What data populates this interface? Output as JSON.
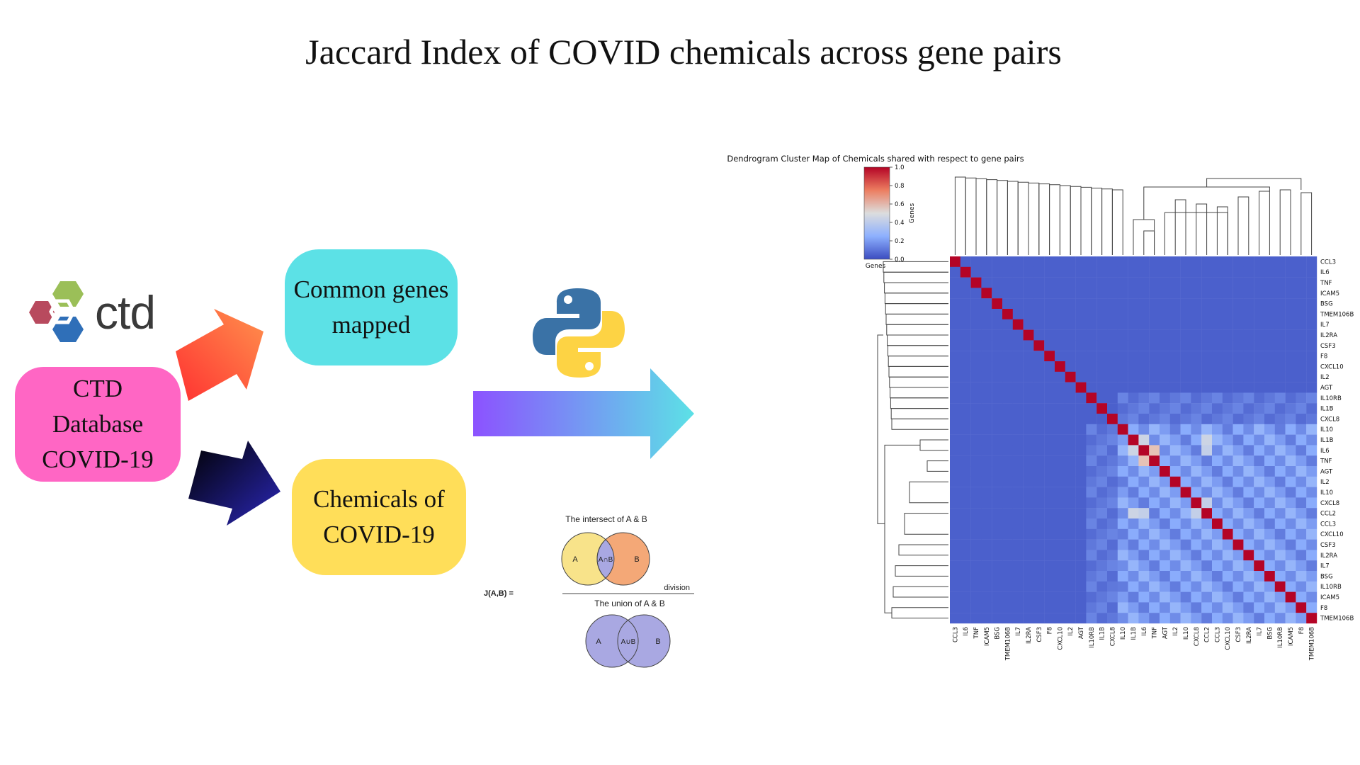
{
  "title": "Jaccard Index of COVID chemicals across gene pairs",
  "logo": {
    "text": "ctd",
    "colors": [
      "#b84a5e",
      "#9bbf58",
      "#2f6fb8"
    ]
  },
  "boxes": {
    "database": "CTD\nDatabase\nCOVID-19",
    "common_genes": "Common genes\nmapped",
    "chemicals": "Chemicals of\nCOVID-19"
  },
  "colors": {
    "pink": "#ff66c4",
    "cyan": "#5ce1e6",
    "yellow": "#ffde59"
  },
  "jaccard": {
    "lhs": "J(A,B)  =",
    "intersect_title": "The intersect of A & B",
    "union_title": "The union of A & B",
    "division": "division",
    "a": "A",
    "b": "B",
    "intersection": "A∩B",
    "union": "A∪B"
  },
  "chart_data": {
    "type": "heatmap",
    "title": "Dendrogram Cluster Map of Chemicals shared with respect to gene pairs",
    "colorbar_label": "Genes",
    "colorbar_ticks": [
      1.0,
      0.8,
      0.6,
      0.4,
      0.2,
      0.0
    ],
    "colorbar_tick_labels": [
      "1.0",
      "0.8",
      "0.6",
      "0.4",
      "0.2",
      "0.0"
    ],
    "colormap": "coolwarm",
    "ylabel": "Genes",
    "row_labels": [
      "CCL3",
      "IL6",
      "TNF",
      "ICAM5",
      "BSG",
      "TMEM106B",
      "IL7",
      "IL2RA",
      "CSF3",
      "F8",
      "CXCL10",
      "IL2",
      "AGT",
      "IL10RB",
      "IL1B",
      "CXCL8",
      "IL10",
      "IL1B",
      "IL6",
      "TNF",
      "AGT",
      "IL2",
      "IL10",
      "CXCL8",
      "CCL2",
      "CCL3",
      "CXCL10",
      "CSF3",
      "IL2RA",
      "IL7",
      "BSG",
      "IL10RB",
      "ICAM5",
      "F8",
      "TMEM106B"
    ],
    "col_labels": [
      "CCL3",
      "IL6",
      "TNF",
      "ICAM5",
      "BSG",
      "TMEM106B",
      "IL7",
      "IL2RA",
      "CSF3",
      "F8",
      "CXCL10",
      "IL2",
      "AGT",
      "IL10RB",
      "IL1B",
      "CXCL8",
      "IL10",
      "IL1B",
      "IL6",
      "TNF",
      "AGT",
      "IL2",
      "IL10",
      "CXCL8",
      "CCL2",
      "CCL3",
      "CXCL10",
      "CSF3",
      "IL2RA",
      "IL7",
      "BSG",
      "IL10RB",
      "ICAM5",
      "F8",
      "TMEM106B"
    ],
    "diagonal_value": 1.0,
    "background_value": 0.05,
    "bright_cells": [
      {
        "row": 18,
        "col": 19,
        "value": 0.6
      },
      {
        "row": 19,
        "col": 18,
        "value": 0.6
      },
      {
        "row": 17,
        "col": 18,
        "value": 0.45
      },
      {
        "row": 18,
        "col": 17,
        "value": 0.45
      },
      {
        "row": 24,
        "col": 17,
        "value": 0.45
      },
      {
        "row": 17,
        "col": 24,
        "value": 0.45
      },
      {
        "row": 18,
        "col": 24,
        "value": 0.42
      },
      {
        "row": 24,
        "col": 18,
        "value": 0.42
      },
      {
        "row": 24,
        "col": 23,
        "value": 0.42
      },
      {
        "row": 23,
        "col": 24,
        "value": 0.42
      }
    ]
  }
}
